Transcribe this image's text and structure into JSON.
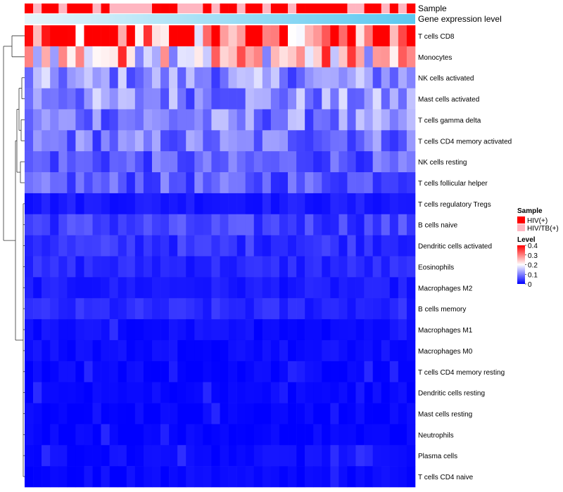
{
  "chart_data": {
    "type": "heatmap",
    "rows": [
      "T cells CD8",
      "Monocytes",
      "NK cells activated",
      "Mast cells activated",
      "T cells gamma delta",
      "T cells CD4 memory activated",
      "NK cells resting",
      "T cells follicular helper",
      "T cells regulatory  Tregs",
      "B cells naive",
      "Dendritic cells activated",
      "Eosinophils",
      "Macrophages M2",
      "B cells memory",
      "Macrophages M1",
      "Macrophages M0",
      "T cells CD4 memory resting",
      "Dendritic cells resting",
      "Mast cells resting",
      "Neutrophils",
      "Plasma cells",
      "T cells CD4 naive"
    ],
    "row_mean_levels": [
      0.33,
      0.24,
      0.11,
      0.11,
      0.1,
      0.09,
      0.07,
      0.07,
      0.02,
      0.05,
      0.04,
      0.03,
      0.02,
      0.03,
      0.01,
      0.01,
      0.005,
      0.005,
      0.003,
      0.002,
      0.01,
      0.005
    ],
    "column_count": 46,
    "sample_annotation": [
      "HIV(+)",
      "HIV/TB(+)",
      "HIV(+)",
      "HIV(+)",
      "HIV/TB(+)",
      "HIV(+)",
      "HIV(+)",
      "HIV(+)",
      "HIV/TB(+)",
      "HIV(+)",
      "HIV/TB(+)",
      "HIV/TB(+)",
      "HIV/TB(+)",
      "HIV/TB(+)",
      "HIV/TB(+)",
      "HIV(+)",
      "HIV(+)",
      "HIV(+)",
      "HIV/TB(+)",
      "HIV/TB(+)",
      "HIV/TB(+)",
      "HIV(+)",
      "HIV/TB(+)",
      "HIV(+)",
      "HIV(+)",
      "HIV/TB(+)",
      "HIV(+)",
      "HIV(+)",
      "HIV/TB(+)",
      "HIV(+)",
      "HIV(+)",
      "HIV/TB(+)",
      "HIV(+)",
      "HIV(+)",
      "HIV(+)",
      "HIV(+)",
      "HIV(+)",
      "HIV(+)",
      "HIV/TB(+)",
      "HIV/TB(+)",
      "HIV(+)",
      "HIV(+)",
      "HIV/TB(+)",
      "HIV(+)",
      "HIV/TB(+)",
      "HIV(+)"
    ],
    "annotation_rows": [
      "Sample",
      "Gene expression level"
    ],
    "legend": {
      "sample_title": "Sample",
      "sample_items": [
        {
          "label": "HIV(+)",
          "color": "#ff0000"
        },
        {
          "label": "HIV/TB(+)",
          "color": "#ffb6c1"
        }
      ],
      "level_title": "Level",
      "level_ticks": [
        "0.4",
        "0.3",
        "0.2",
        "0.1",
        "0"
      ],
      "level_tick_values": [
        0.4,
        0.3,
        0.2,
        0.1,
        0
      ],
      "level_range": [
        0,
        0.4
      ],
      "placement": "right"
    },
    "colors": {
      "low": "#0000ff",
      "mid": "#ffffff",
      "high": "#ff0000",
      "mid_value": 0.2
    },
    "dendrogram": "rows"
  }
}
